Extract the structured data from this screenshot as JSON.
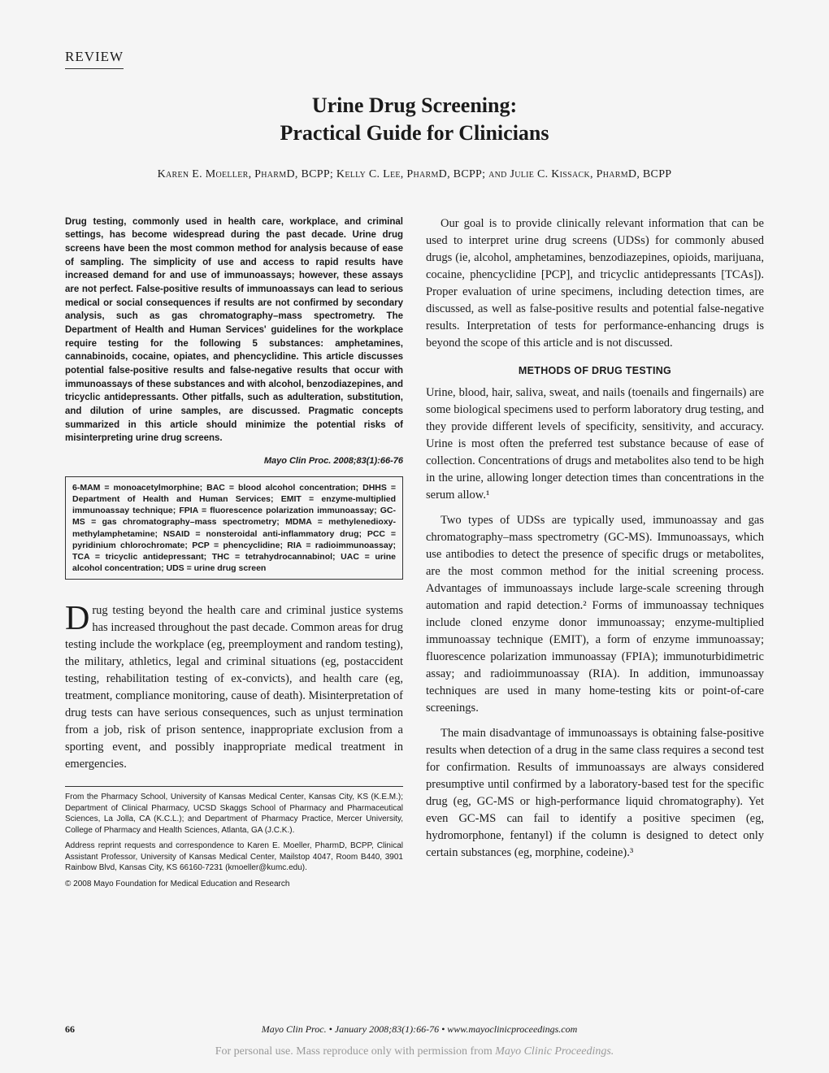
{
  "label": "REVIEW",
  "title_line1": "Urine Drug Screening:",
  "title_line2": "Practical Guide for Clinicians",
  "authors": "Karen E. Moeller, PharmD, BCPP; Kelly C. Lee, PharmD, BCPP; and Julie C. Kissack, PharmD, BCPP",
  "abstract": "Drug testing, commonly used in health care, workplace, and criminal settings, has become widespread during the past decade. Urine drug screens have been the most common method for analysis because of ease of sampling. The simplicity of use and access to rapid results have increased demand for and use of immunoassays; however, these assays are not perfect. False-positive results of immunoassays can lead to serious medical or social consequences if results are not confirmed by secondary analysis, such as gas chromatography–mass spectrometry. The Department of Health and Human Services' guidelines for the workplace require testing for the following 5 substances: amphetamines, cannabinoids, cocaine, opiates, and phencyclidine. This article discusses potential false-positive results and false-negative results that occur with immunoassays of these substances and with alcohol, benzodiazepines, and tricyclic antidepressants. Other pitfalls, such as adulteration, substitution, and dilution of urine samples, are discussed. Pragmatic concepts summarized in this article should minimize the potential risks of misinterpreting urine drug screens.",
  "citation": "Mayo Clin Proc. 2008;83(1):66-76",
  "abbreviations": "6-MAM = monoacetylmorphine; BAC = blood alcohol concentration; DHHS = Department of Health and Human Services; EMIT = enzyme-multiplied immunoassay technique; FPIA = fluorescence polarization immunoassay; GC-MS = gas chromatography–mass spectrometry; MDMA = methylenedioxy-methylamphetamine; NSAID = nonsteroidal anti-inflammatory drug; PCC = pyridinium chlorochromate; PCP = phencyclidine; RIA = radioimmunoassay; TCA = tricyclic antidepressant; THC = tetrahydrocannabinol; UAC = urine alcohol concentration; UDS = urine drug screen",
  "dropcap": "D",
  "intro_rest": "rug testing beyond the health care and criminal justice systems has increased throughout the past decade. Common areas for drug testing include the workplace (eg, preemployment and random testing), the military, athletics, legal and criminal situations (eg, postaccident testing, rehabilitation testing of ex-convicts), and health care (eg, treatment, compliance monitoring, cause of death). Misinterpretation of drug tests can have serious consequences, such as unjust termination from a job, risk of prison sentence, inappropriate exclusion from a sporting event, and possibly inappropriate medical treatment in emergencies.",
  "affiliations": "From the Pharmacy School, University of Kansas Medical Center, Kansas City, KS (K.E.M.); Department of Clinical Pharmacy, UCSD Skaggs School of Pharmacy and Pharmaceutical Sciences, La Jolla, CA (K.C.L.); and Department of Pharmacy Practice, Mercer University, College of Pharmacy and Health Sciences, Atlanta, GA (J.C.K.).",
  "reprint": "Address reprint requests and correspondence to Karen E. Moeller, PharmD, BCPP, Clinical Assistant Professor, University of Kansas Medical Center, Mailstop 4047, Room B440, 3901 Rainbow Blvd, Kansas City, KS 66160-7231 (kmoeller@kumc.edu).",
  "copyright": "© 2008 Mayo Foundation for Medical Education and Research",
  "goal_para": "Our goal is to provide clinically relevant information that can be used to interpret urine drug screens (UDSs) for commonly abused drugs (ie, alcohol, amphetamines, benzodiazepines, opioids, marijuana, cocaine, phencyclidine [PCP], and tricyclic antidepressants [TCAs]). Proper evaluation of urine specimens, including detection times, are discussed, as well as false-positive results and potential false-negative results. Interpretation of tests for performance-enhancing drugs is beyond the scope of this article and is not discussed.",
  "section_head": "METHODS OF DRUG TESTING",
  "methods_p1": "Urine, blood, hair, saliva, sweat, and nails (toenails and fingernails) are some biological specimens used to perform laboratory drug testing, and they provide different levels of specificity, sensitivity, and accuracy. Urine is most often the preferred test substance because of ease of collection. Concentrations of drugs and metabolites also tend to be high in the urine, allowing longer detection times than concentrations in the serum allow.¹",
  "methods_p2": "Two types of UDSs are typically used, immunoassay and gas chromatography–mass spectrometry (GC-MS). Immunoassays, which use antibodies to detect the presence of specific drugs or metabolites, are the most common method for the initial screening process. Advantages of immunoassays include large-scale screening through automation and rapid detection.² Forms of immunoassay techniques include cloned enzyme donor immunoassay; enzyme-multiplied immunoassay technique (EMIT), a form of enzyme immunoassay; fluorescence polarization immunoassay (FPIA); immunoturbidimetric assay; and radioimmunoassay (RIA). In addition, immunoassay techniques are used in many home-testing kits or point-of-care screenings.",
  "methods_p3": "The main disadvantage of immunoassays is obtaining false-positive results when detection of a drug in the same class requires a second test for confirmation. Results of immunoassays are always considered presumptive until confirmed by a laboratory-based test for the specific drug (eg, GC-MS or high-performance liquid chromatography). Yet even GC-MS can fail to identify a positive specimen (eg, hydromorphone, fentanyl) if the column is designed to detect only certain substances (eg, morphine, codeine).³",
  "footer": {
    "page": "66",
    "citation": "Mayo Clin Proc.    •    January 2008;83(1):66-76    •    www.mayoclinicproceedings.com"
  },
  "permission_pre": "For personal use. Mass reproduce only with permission from ",
  "permission_ital": "Mayo Clinic Proceedings."
}
